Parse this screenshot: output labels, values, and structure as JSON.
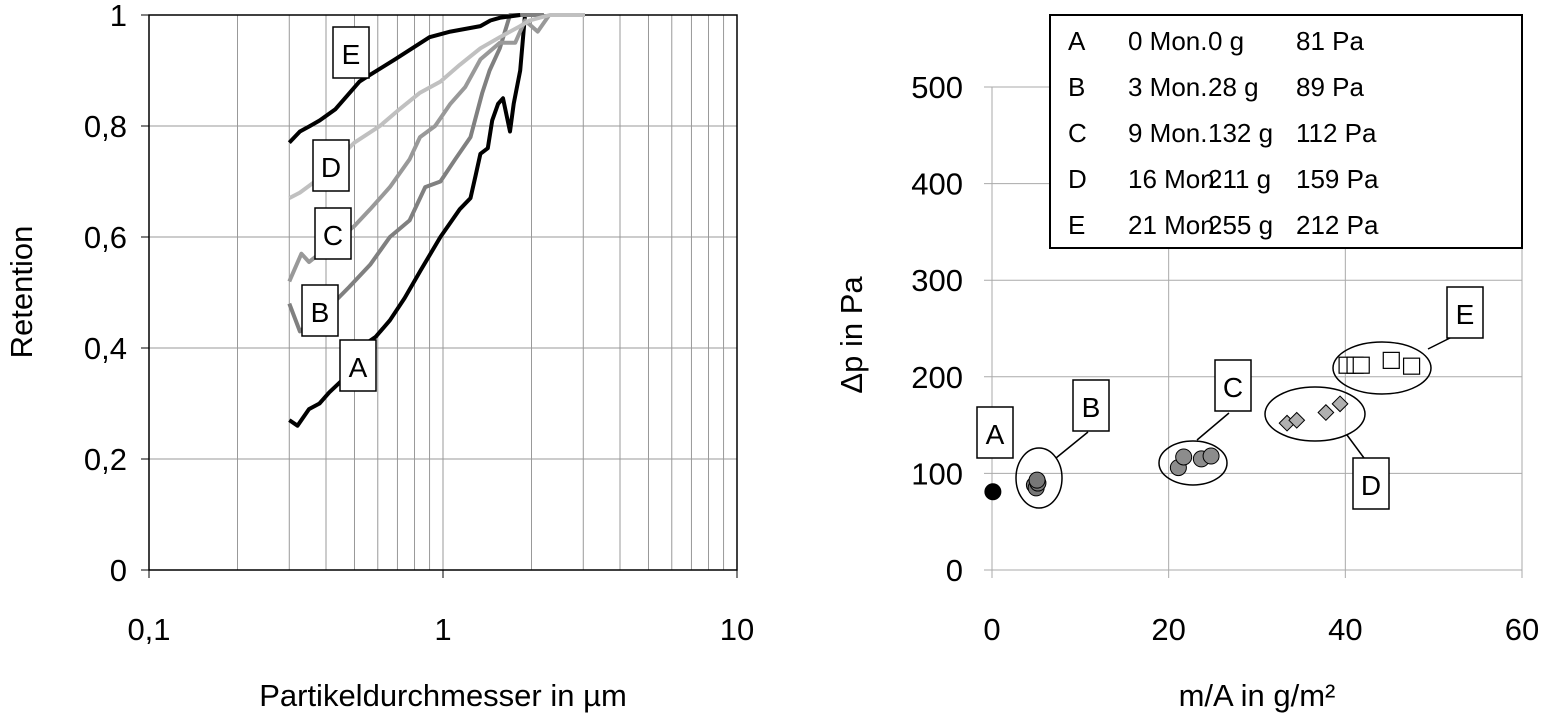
{
  "chart_data": [
    {
      "type": "line",
      "xlabel": "Partikeldurchmesser in µm",
      "ylabel": "Retention",
      "xscale": "log",
      "xlim": [
        0.1,
        10
      ],
      "ylim": [
        0,
        1
      ],
      "xticks": [
        "0,1",
        "1",
        "10"
      ],
      "yticks": [
        "0",
        "0,2",
        "0,4",
        "0,6",
        "0,8",
        "1"
      ],
      "grid": true,
      "series": [
        {
          "name": "A",
          "color": "#000000",
          "points": [
            [
              0.3,
              0.27
            ],
            [
              0.32,
              0.26
            ],
            [
              0.35,
              0.29
            ],
            [
              0.38,
              0.3
            ],
            [
              0.41,
              0.32
            ],
            [
              0.45,
              0.34
            ],
            [
              0.48,
              0.36
            ],
            [
              0.52,
              0.4
            ],
            [
              0.59,
              0.42
            ],
            [
              0.66,
              0.45
            ],
            [
              0.74,
              0.49
            ],
            [
              0.84,
              0.54
            ],
            [
              0.98,
              0.6
            ],
            [
              1.14,
              0.65
            ],
            [
              1.24,
              0.67
            ],
            [
              1.29,
              0.71
            ],
            [
              1.34,
              0.75
            ],
            [
              1.42,
              0.76
            ],
            [
              1.47,
              0.81
            ],
            [
              1.54,
              0.84
            ],
            [
              1.6,
              0.85
            ],
            [
              1.69,
              0.79
            ],
            [
              1.74,
              0.84
            ],
            [
              1.83,
              0.9
            ],
            [
              1.9,
              1.0
            ],
            [
              2.2,
              1.0
            ]
          ]
        },
        {
          "name": "B",
          "color": "#808080",
          "points": [
            [
              0.3,
              0.48
            ],
            [
              0.326,
              0.43
            ],
            [
              0.44,
              0.49
            ],
            [
              0.48,
              0.51
            ],
            [
              0.565,
              0.55
            ],
            [
              0.66,
              0.6
            ],
            [
              0.77,
              0.63
            ],
            [
              0.87,
              0.69
            ],
            [
              0.98,
              0.7
            ],
            [
              1.1,
              0.74
            ],
            [
              1.24,
              0.78
            ],
            [
              1.36,
              0.86
            ],
            [
              1.44,
              0.9
            ],
            [
              1.56,
              0.94
            ],
            [
              1.69,
              1.0
            ],
            [
              2.2,
              1.0
            ]
          ]
        },
        {
          "name": "C",
          "color": "#999999",
          "points": [
            [
              0.3,
              0.52
            ],
            [
              0.33,
              0.57
            ],
            [
              0.35,
              0.555
            ],
            [
              0.5,
              0.62
            ],
            [
              0.565,
              0.65
            ],
            [
              0.66,
              0.69
            ],
            [
              0.77,
              0.74
            ],
            [
              0.835,
              0.78
            ],
            [
              0.94,
              0.8
            ],
            [
              1.06,
              0.84
            ],
            [
              1.19,
              0.87
            ],
            [
              1.34,
              0.92
            ],
            [
              1.56,
              0.95
            ],
            [
              1.76,
              0.95
            ],
            [
              1.9,
              0.99
            ],
            [
              2.1,
              0.97
            ],
            [
              2.3,
              1.0
            ]
          ]
        },
        {
          "name": "D",
          "color": "#c0c0c0",
          "points": [
            [
              0.3,
              0.67
            ],
            [
              0.326,
              0.68
            ],
            [
              0.367,
              0.7
            ],
            [
              0.5,
              0.77
            ],
            [
              0.61,
              0.8
            ],
            [
              0.71,
              0.83
            ],
            [
              0.835,
              0.86
            ],
            [
              0.98,
              0.88
            ],
            [
              1.14,
              0.91
            ],
            [
              1.34,
              0.94
            ],
            [
              1.56,
              0.96
            ],
            [
              1.83,
              0.98
            ],
            [
              1.97,
              0.99
            ],
            [
              2.31,
              1.0
            ],
            [
              3.04,
              1.0
            ]
          ]
        },
        {
          "name": "E",
          "color": "#000000",
          "points": [
            [
              0.3,
              0.77
            ],
            [
              0.326,
              0.79
            ],
            [
              0.353,
              0.8
            ],
            [
              0.381,
              0.81
            ],
            [
              0.43,
              0.83
            ],
            [
              0.52,
              0.88
            ],
            [
              0.556,
              0.89
            ],
            [
              0.686,
              0.92
            ],
            [
              0.9,
              0.96
            ],
            [
              1.06,
              0.97
            ],
            [
              1.34,
              0.98
            ],
            [
              1.45,
              0.99
            ],
            [
              1.56,
              0.995
            ],
            [
              1.83,
              1.0
            ]
          ]
        }
      ],
      "labels": [
        "A",
        "B",
        "C",
        "D",
        "E"
      ]
    },
    {
      "type": "scatter",
      "xlabel": "m/A in g/m²",
      "ylabel": "Δp in Pa",
      "xlim": [
        0,
        60
      ],
      "ylim": [
        0,
        500
      ],
      "xticks": [
        "0",
        "20",
        "40",
        "60"
      ],
      "yticks": [
        "0",
        "100",
        "200",
        "300",
        "400",
        "500"
      ],
      "grid": true,
      "series": [
        {
          "name": "A",
          "marker": "circle",
          "color": "#000000",
          "points": [
            [
              0.1,
              81
            ]
          ]
        },
        {
          "name": "B",
          "marker": "circle",
          "color": "#777777",
          "points": [
            [
              4.8,
              88
            ],
            [
              5.0,
              85
            ],
            [
              5.2,
              90
            ],
            [
              5.1,
              93
            ]
          ]
        },
        {
          "name": "C",
          "marker": "circle",
          "color": "#8c8c8c",
          "points": [
            [
              21.1,
              106
            ],
            [
              21.7,
              117
            ],
            [
              23.7,
              115
            ],
            [
              24.8,
              118
            ]
          ]
        },
        {
          "name": "D",
          "marker": "diamond",
          "color": "#b0b0b0",
          "points": [
            [
              33.4,
              152
            ],
            [
              34.5,
              155
            ],
            [
              37.8,
              163
            ],
            [
              39.4,
              172
            ]
          ]
        },
        {
          "name": "E",
          "marker": "square",
          "color": "#ffffff",
          "points": [
            [
              40.2,
              212
            ],
            [
              41.1,
              212
            ],
            [
              41.8,
              212
            ],
            [
              45.2,
              217
            ],
            [
              47.5,
              211
            ]
          ]
        }
      ],
      "legend": {
        "placement": "top-right",
        "rows": [
          [
            "A",
            "0 Mon.",
            "0 g",
            "81 Pa"
          ],
          [
            "B",
            "3 Mon.",
            "28 g",
            "89 Pa"
          ],
          [
            "C",
            "9 Mon.",
            "132 g",
            "112 Pa"
          ],
          [
            "D",
            "16 Mon.",
            "211 g",
            "159 Pa"
          ],
          [
            "E",
            "21 Mon.",
            "255 g",
            "212 Pa"
          ]
        ]
      },
      "labels": [
        "A",
        "B",
        "C",
        "D",
        "E"
      ]
    }
  ]
}
